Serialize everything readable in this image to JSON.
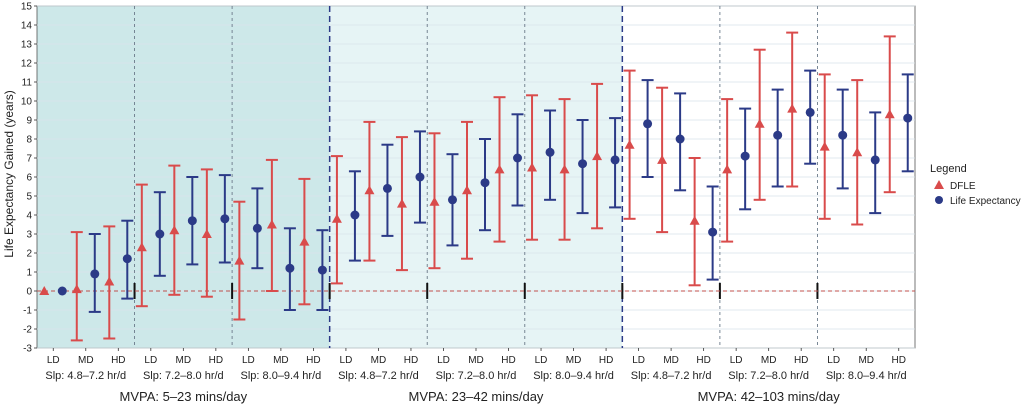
{
  "chart_data": {
    "type": "scatter",
    "ylabel": "Life Expectancy Gained (years)",
    "ylim": [
      -3,
      15
    ],
    "yticks": [
      -3,
      -2,
      -1,
      0,
      1,
      2,
      3,
      4,
      5,
      6,
      7,
      8,
      9,
      10,
      11,
      12,
      13,
      14,
      15
    ],
    "grid": true,
    "reference_line": 0,
    "legend": {
      "title": "Legend",
      "position": "right",
      "entries": [
        "DFLE",
        "Life Expectancy"
      ]
    },
    "categories": [
      "LD",
      "MD",
      "HD",
      "LD",
      "MD",
      "HD",
      "LD",
      "MD",
      "HD",
      "LD",
      "MD",
      "HD",
      "LD",
      "MD",
      "HD",
      "LD",
      "MD",
      "HD",
      "LD",
      "MD",
      "HD",
      "LD",
      "MD",
      "HD",
      "LD",
      "MD",
      "HD"
    ],
    "sleep_groups": [
      "Slp: 4.8–7.2 hr/d",
      "Slp: 7.2–8.0 hr/d",
      "Slp: 8.0–9.4 hr/d",
      "Slp: 4.8–7.2 hr/d",
      "Slp: 7.2–8.0 hr/d",
      "Slp: 8.0–9.4 hr/d",
      "Slp: 4.8–7.2 hr/d",
      "Slp: 7.2–8.0 hr/d",
      "Slp: 8.0–9.4 hr/d"
    ],
    "mvpa_groups": [
      "MVPA: 5–23 mins/day",
      "MVPA: 23–42 mins/day",
      "MVPA: 42–103 mins/day"
    ],
    "series": [
      {
        "name": "DFLE",
        "color": "#d94b4b",
        "marker": "triangle",
        "values": [
          0.0,
          0.1,
          0.5,
          2.3,
          3.2,
          3.0,
          1.6,
          3.5,
          2.6,
          3.8,
          5.3,
          4.6,
          4.7,
          5.3,
          6.4,
          6.5,
          6.4,
          7.1,
          7.7,
          6.9,
          3.7,
          6.4,
          8.8,
          9.6,
          7.6,
          7.3,
          9.3
        ],
        "lower": [
          0.0,
          -2.6,
          -2.5,
          -0.8,
          -0.2,
          -0.3,
          -1.5,
          0.0,
          -0.7,
          0.4,
          1.6,
          1.1,
          1.2,
          1.7,
          2.6,
          2.7,
          2.7,
          3.3,
          3.8,
          3.1,
          0.3,
          2.6,
          4.8,
          5.5,
          3.8,
          3.5,
          5.2
        ],
        "upper": [
          0.0,
          3.1,
          3.4,
          5.6,
          6.6,
          6.4,
          4.7,
          6.9,
          5.9,
          7.1,
          8.9,
          8.1,
          8.3,
          8.9,
          10.2,
          10.3,
          10.1,
          10.9,
          11.6,
          10.7,
          7.0,
          10.1,
          12.7,
          13.6,
          11.4,
          11.1,
          13.4
        ]
      },
      {
        "name": "Life Expectancy",
        "color": "#2b3a87",
        "marker": "circle",
        "values": [
          0.0,
          0.9,
          1.7,
          3.0,
          3.7,
          3.8,
          3.3,
          1.2,
          1.1,
          4.0,
          5.4,
          6.0,
          4.8,
          5.7,
          7.0,
          7.3,
          6.7,
          6.9,
          8.8,
          8.0,
          3.1,
          7.1,
          8.2,
          9.4,
          8.2,
          6.9,
          9.1
        ],
        "lower": [
          0.0,
          -1.1,
          -0.4,
          0.8,
          1.4,
          1.5,
          1.2,
          -1.0,
          -1.0,
          1.6,
          2.9,
          3.6,
          2.4,
          3.2,
          4.5,
          4.8,
          4.1,
          4.4,
          6.0,
          5.3,
          0.6,
          4.3,
          5.5,
          6.7,
          5.4,
          4.1,
          6.3
        ],
        "upper": [
          0.0,
          3.0,
          3.7,
          5.2,
          6.0,
          6.1,
          5.4,
          3.3,
          3.2,
          6.3,
          7.7,
          8.4,
          7.2,
          8.0,
          9.3,
          9.5,
          9.0,
          9.1,
          11.1,
          10.4,
          5.5,
          9.6,
          10.6,
          11.6,
          10.6,
          9.4,
          11.4
        ]
      }
    ]
  },
  "colors": {
    "band_mvpa1": "#cde8e9",
    "band_mvpa2": "#e6f4f5",
    "band_mvpa3": "#ffffff",
    "grid": "#d9e3ea",
    "zero_line": "#c0504d",
    "group_divider": "#2b3a87"
  }
}
